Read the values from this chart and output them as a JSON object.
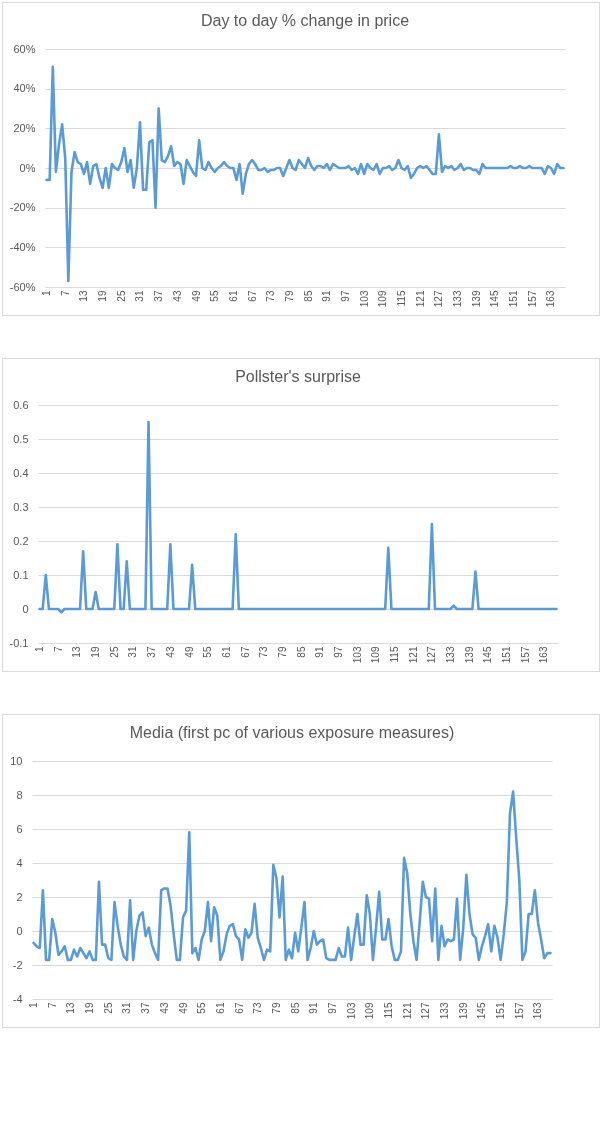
{
  "chart_data": [
    {
      "type": "line",
      "title": "Day to day % change in price",
      "color": "#5b9bd5",
      "grid": "y",
      "ylim": [
        -60,
        60
      ],
      "yticks": [
        {
          "value": 60,
          "label": "60%"
        },
        {
          "value": 40,
          "label": "40%"
        },
        {
          "value": 20,
          "label": "20%"
        },
        {
          "value": 0,
          "label": "0%"
        },
        {
          "value": -20,
          "label": "-20%"
        },
        {
          "value": -40,
          "label": "-40%"
        },
        {
          "value": -60,
          "label": "-60%"
        }
      ],
      "categories": [
        "1",
        null,
        null,
        null,
        null,
        null,
        "7",
        null,
        null,
        null,
        null,
        null,
        "13",
        null,
        null,
        null,
        null,
        null,
        "19",
        null,
        null,
        null,
        null,
        null,
        "25",
        null,
        null,
        null,
        null,
        null,
        "31",
        null,
        null,
        null,
        null,
        null,
        "37",
        null,
        null,
        null,
        null,
        null,
        "43",
        null,
        null,
        null,
        null,
        null,
        "49",
        null,
        null,
        null,
        null,
        null,
        "55",
        null,
        null,
        null,
        null,
        null,
        "61",
        null,
        null,
        null,
        null,
        null,
        "67",
        null,
        null,
        null,
        null,
        null,
        "73",
        null,
        null,
        null,
        null,
        null,
        "79",
        null,
        null,
        null,
        null,
        null,
        "85",
        null,
        null,
        null,
        null,
        null,
        "91",
        null,
        null,
        null,
        null,
        null,
        "97",
        null,
        null,
        null,
        null,
        null,
        "103",
        null,
        null,
        null,
        null,
        null,
        "109",
        null,
        null,
        null,
        null,
        null,
        "115",
        null,
        null,
        null,
        null,
        null,
        "121",
        null,
        null,
        null,
        null,
        null,
        "127",
        null,
        null,
        null,
        null,
        null,
        "133",
        null,
        null,
        null,
        null,
        null,
        "139",
        null,
        null,
        null,
        null,
        null,
        "145",
        null,
        null,
        null,
        null,
        null,
        "151",
        null,
        null,
        null,
        null,
        null,
        "157",
        null,
        null,
        null,
        null,
        null,
        "163",
        null,
        null,
        null,
        null
      ],
      "values": [
        -6,
        -6,
        51,
        -2,
        12,
        22,
        5,
        -57,
        -2,
        8,
        3,
        2,
        -3,
        3,
        -8,
        1,
        2,
        -5,
        -10,
        0,
        -10,
        2,
        0,
        -1,
        3,
        10,
        -2,
        4,
        -10,
        0,
        23,
        -11,
        -11,
        13,
        14,
        -20,
        30,
        4,
        3,
        6,
        11,
        1,
        3,
        2,
        -8,
        4,
        1,
        -2,
        -4,
        14,
        0,
        -1,
        3,
        0,
        -2,
        0,
        1,
        3,
        1,
        0,
        0,
        -6,
        2,
        -13,
        -3,
        2,
        4,
        2,
        -1,
        -1,
        0,
        -2,
        -1,
        -1,
        0,
        0,
        -4,
        0,
        4,
        0,
        -1,
        4,
        2,
        0,
        5,
        1,
        -1,
        1,
        1,
        0,
        2,
        -1,
        2,
        1,
        0,
        0,
        0,
        1,
        -1,
        0,
        -3,
        2,
        -3,
        2,
        0,
        -1,
        2,
        -3,
        0,
        0,
        1,
        -1,
        0,
        4,
        0,
        -1,
        1,
        -5,
        -3,
        0,
        1,
        0,
        1,
        -1,
        -3,
        -3,
        17,
        -2,
        1,
        0,
        1,
        -1,
        0,
        2,
        -1,
        0,
        0,
        -1,
        -1,
        -3,
        2,
        0,
        0,
        0,
        0,
        0,
        0,
        0,
        0,
        1,
        0,
        0,
        1,
        0,
        0,
        1,
        0,
        0,
        0,
        0,
        -3,
        1,
        0,
        -3,
        2,
        0,
        0
      ]
    },
    {
      "type": "line",
      "title": "Pollster's surprise",
      "color": "#5b9bd5",
      "grid": "y",
      "ylim": [
        -0.1,
        0.6
      ],
      "yticks": [
        0.6,
        0.5,
        0.4,
        0.3,
        0.2,
        0.1,
        0,
        -0.1
      ],
      "categories": [
        "1",
        null,
        null,
        null,
        null,
        null,
        "7",
        null,
        null,
        null,
        null,
        null,
        "13",
        null,
        null,
        null,
        null,
        null,
        "19",
        null,
        null,
        null,
        null,
        null,
        "25",
        null,
        null,
        null,
        null,
        null,
        "31",
        null,
        null,
        null,
        null,
        null,
        "37",
        null,
        null,
        null,
        null,
        null,
        "43",
        null,
        null,
        null,
        null,
        null,
        "49",
        null,
        null,
        null,
        null,
        null,
        "55",
        null,
        null,
        null,
        null,
        null,
        "61",
        null,
        null,
        null,
        null,
        null,
        "67",
        null,
        null,
        null,
        null,
        null,
        "73",
        null,
        null,
        null,
        null,
        null,
        "79",
        null,
        null,
        null,
        null,
        null,
        "85",
        null,
        null,
        null,
        null,
        null,
        "91",
        null,
        null,
        null,
        null,
        null,
        "97",
        null,
        null,
        null,
        null,
        null,
        "103",
        null,
        null,
        null,
        null,
        null,
        "109",
        null,
        null,
        null,
        null,
        null,
        "115",
        null,
        null,
        null,
        null,
        null,
        "121",
        null,
        null,
        null,
        null,
        null,
        "127",
        null,
        null,
        null,
        null,
        null,
        "133",
        null,
        null,
        null,
        null,
        null,
        "139",
        null,
        null,
        null,
        null,
        null,
        "145",
        null,
        null,
        null,
        null,
        null,
        "151",
        null,
        null,
        null,
        null,
        null,
        "157",
        null,
        null,
        null,
        null,
        null,
        "163",
        null,
        null,
        null,
        null
      ],
      "values": [
        0,
        0,
        0.1,
        0,
        0,
        0,
        0,
        -0.01,
        0,
        0,
        0,
        0,
        0,
        0,
        0.17,
        0,
        0,
        0,
        0.05,
        0,
        0,
        0,
        0,
        0,
        0,
        0.19,
        0,
        0,
        0.14,
        0,
        0,
        0,
        0,
        0,
        0,
        0.55,
        0,
        0,
        0,
        0,
        0,
        0,
        0.19,
        0,
        0,
        0,
        0,
        0,
        0,
        0.13,
        0,
        0,
        0,
        0,
        0,
        0,
        0,
        0,
        0,
        0,
        0,
        0,
        0,
        0.22,
        0,
        0,
        0,
        0,
        0,
        0,
        0,
        0,
        0,
        0,
        0,
        0,
        0,
        0,
        0,
        0,
        0,
        0,
        0,
        0,
        0,
        0,
        0,
        0,
        0,
        0,
        0,
        0,
        0,
        0,
        0,
        0,
        0,
        0,
        0,
        0,
        0,
        0,
        0,
        0,
        0,
        0,
        0,
        0,
        0,
        0,
        0,
        0,
        0.18,
        0,
        0,
        0,
        0,
        0,
        0,
        0,
        0,
        0,
        0,
        0,
        0,
        0,
        0.25,
        0,
        0,
        0,
        0,
        0,
        0,
        0.01,
        0,
        0,
        0,
        0,
        0,
        0,
        0.11,
        0,
        0,
        0,
        0,
        0,
        0,
        0,
        0,
        0,
        0,
        0,
        0,
        0,
        0,
        0,
        0,
        0,
        0,
        0,
        0,
        0,
        0,
        0,
        0,
        0,
        0
      ]
    },
    {
      "type": "line",
      "title": "Media (first pc of various exposure measures)",
      "color": "#5b9bd5",
      "grid": "y",
      "ylim": [
        -4,
        10
      ],
      "yticks": [
        10,
        8,
        6,
        4,
        2,
        0,
        -2,
        -4
      ],
      "categories": [
        "1",
        null,
        null,
        null,
        null,
        null,
        "7",
        null,
        null,
        null,
        null,
        null,
        "13",
        null,
        null,
        null,
        null,
        null,
        "19",
        null,
        null,
        null,
        null,
        null,
        "25",
        null,
        null,
        null,
        null,
        null,
        "31",
        null,
        null,
        null,
        null,
        null,
        "37",
        null,
        null,
        null,
        null,
        null,
        "43",
        null,
        null,
        null,
        null,
        null,
        "49",
        null,
        null,
        null,
        null,
        null,
        "55",
        null,
        null,
        null,
        null,
        null,
        "61",
        null,
        null,
        null,
        null,
        null,
        "67",
        null,
        null,
        null,
        null,
        null,
        "73",
        null,
        null,
        null,
        null,
        null,
        "79",
        null,
        null,
        null,
        null,
        null,
        "85",
        null,
        null,
        null,
        null,
        null,
        "91",
        null,
        null,
        null,
        null,
        null,
        "97",
        null,
        null,
        null,
        null,
        null,
        "103",
        null,
        null,
        null,
        null,
        null,
        "109",
        null,
        null,
        null,
        null,
        null,
        "115",
        null,
        null,
        null,
        null,
        null,
        "121",
        null,
        null,
        null,
        null,
        null,
        "127",
        null,
        null,
        null,
        null,
        null,
        "133",
        null,
        null,
        null,
        null,
        null,
        "139",
        null,
        null,
        null,
        null,
        null,
        "145",
        null,
        null,
        null,
        null,
        null,
        "151",
        null,
        null,
        null,
        null,
        null,
        "157",
        null,
        null,
        null,
        null,
        null,
        "163",
        null,
        null,
        null,
        null
      ],
      "values": [
        -0.7,
        -0.9,
        -1,
        2.4,
        -1.7,
        -1.7,
        0.7,
        -0.1,
        -1.4,
        -1.2,
        -0.9,
        -1.7,
        -1.7,
        -1.1,
        -1.5,
        -1,
        -1.3,
        -1.6,
        -1.2,
        -1.7,
        -1.7,
        2.9,
        -0.8,
        -0.8,
        -1.6,
        -1.7,
        1.7,
        0.3,
        -0.8,
        -1.5,
        -1.7,
        1.8,
        -1.7,
        0,
        0.9,
        1.1,
        -0.3,
        0.2,
        -0.8,
        -1.3,
        -1.7,
        2.4,
        2.5,
        2.5,
        1.5,
        -0.2,
        -1.7,
        -1.7,
        0.8,
        1.2,
        5.8,
        -1.3,
        -1,
        -1.7,
        -0.5,
        0,
        1.7,
        -0.6,
        1.4,
        0.9,
        -1.7,
        -1.2,
        -0.2,
        0.3,
        0.4,
        -0.3,
        -0.5,
        -1.7,
        0.1,
        -0.4,
        -0.1,
        1.6,
        -0.4,
        -1,
        -1.7,
        -1.1,
        -1.2,
        3.9,
        3.1,
        0.8,
        3.2,
        -1.7,
        -1.1,
        -1.6,
        -0.1,
        -1.2,
        0.2,
        1.7,
        -1.7,
        -1,
        0,
        -0.8,
        -0.6,
        -0.5,
        -1.6,
        -1.7,
        -1.7,
        -1.7,
        -1,
        -1.5,
        -1.5,
        0.2,
        -1.7,
        -0.3,
        1,
        -0.8,
        -0.8,
        2.1,
        1,
        -1.7,
        0.2,
        2.3,
        -0.5,
        -0.5,
        0.7,
        -0.9,
        -1.7,
        -1.7,
        -1.2,
        4.3,
        3.4,
        1,
        -0.6,
        -1.7,
        0.5,
        2.9,
        2,
        1.9,
        -0.6,
        2.5,
        -1.7,
        0.3,
        -0.9,
        -0.5,
        -0.6,
        -0.5,
        1.9,
        -1.7,
        0.2,
        3.3,
        1,
        -0.2,
        -0.4,
        -1.7,
        -0.9,
        -0.3,
        0.4,
        -1.2,
        0.3,
        -0.4,
        -1.7,
        -0.2,
        1.7,
        6.9,
        8.2,
        5.5,
        3,
        -1.7,
        -1.2,
        1,
        1,
        2.4,
        0.5,
        -0.5,
        -1.6,
        -1.3,
        -1.3
      ]
    }
  ]
}
